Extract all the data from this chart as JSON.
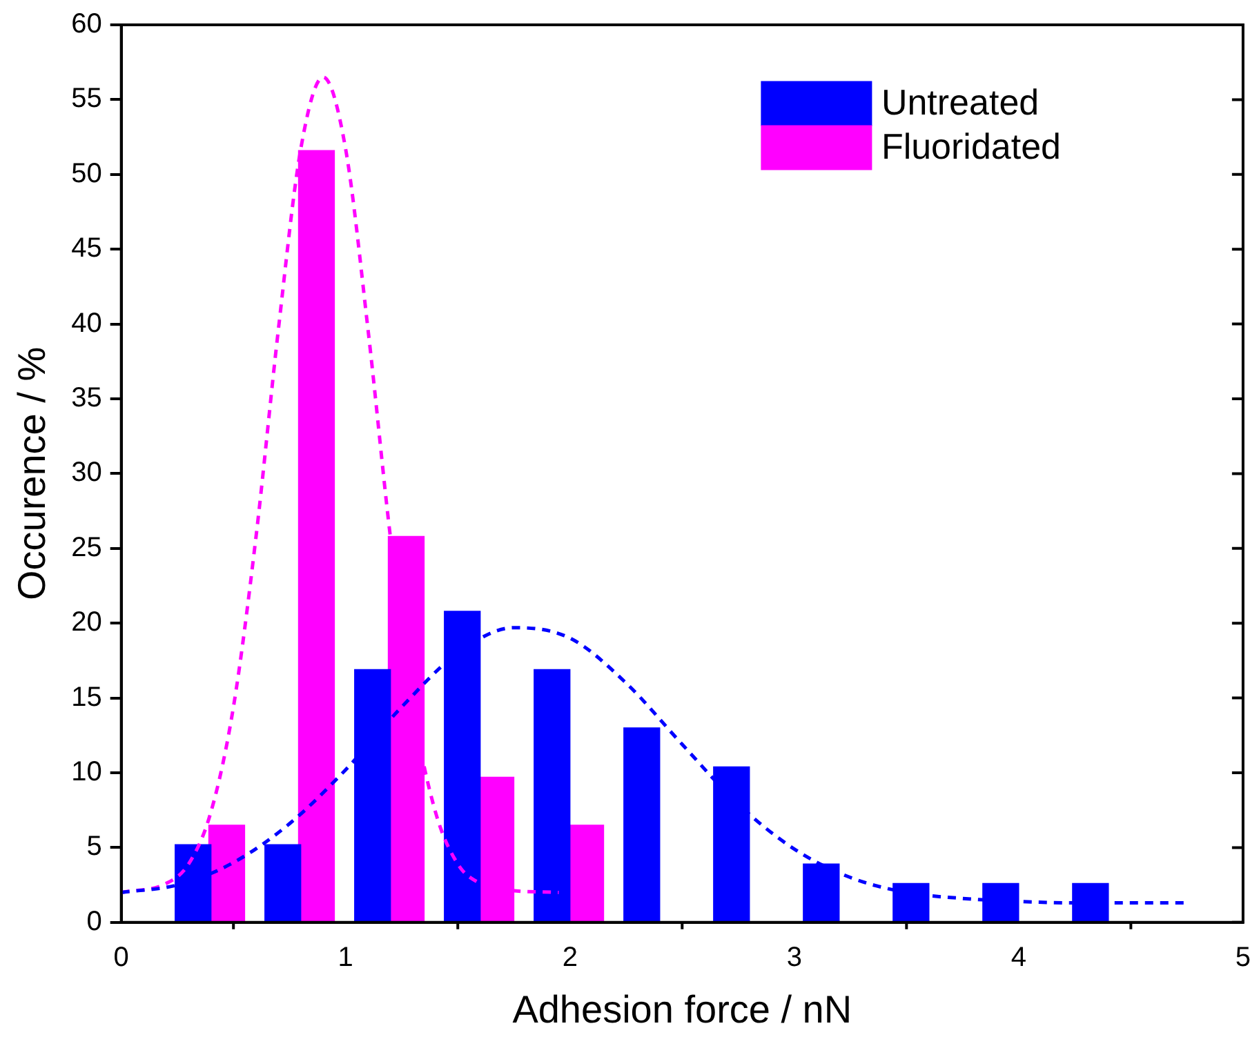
{
  "chart_data": {
    "type": "bar",
    "xlabel": "Adhesion force / nN",
    "ylabel": "Occurence / %",
    "xlim": [
      0,
      5
    ],
    "xticks": [
      0,
      1,
      2,
      3,
      4,
      5
    ],
    "ylim": [
      0,
      60
    ],
    "yticks": [
      0,
      5,
      10,
      15,
      20,
      25,
      30,
      35,
      40,
      45,
      50,
      55,
      60
    ],
    "grid": false,
    "legend": "top right",
    "series": [
      {
        "name": "Untreated",
        "color": "#0000ff",
        "x": [
          0.32,
          0.72,
          1.12,
          1.52,
          1.92,
          2.32,
          2.72,
          3.12,
          3.52,
          3.92,
          4.32
        ],
        "values": [
          5.2,
          5.2,
          16.9,
          20.8,
          16.9,
          13.0,
          10.4,
          3.9,
          2.6,
          2.6,
          2.6
        ]
      },
      {
        "name": "Fluoridated",
        "color": "#ff00ff",
        "x": [
          0.47,
          0.87,
          1.27,
          1.67,
          2.07
        ],
        "values": [
          6.5,
          51.6,
          25.8,
          9.7,
          6.5
        ]
      },
      {
        "type": "line",
        "color": "#0000ff",
        "line_style": "dashed",
        "marker": "none",
        "x": [
          0,
          0.25,
          0.5,
          0.75,
          1.0,
          1.25,
          1.5,
          1.75,
          2.0,
          2.25,
          2.5,
          2.75,
          3.0,
          3.25,
          3.5,
          3.75,
          4.0,
          4.25,
          4.5,
          4.75
        ],
        "values": [
          2.0,
          2.5,
          4.0,
          6.6,
          10.2,
          14.4,
          18.0,
          19.7,
          19.0,
          16.0,
          11.9,
          7.9,
          4.9,
          3.0,
          2.0,
          1.6,
          1.4,
          1.3,
          1.3,
          1.3
        ]
      },
      {
        "type": "line",
        "color": "#ff00ff",
        "line_style": "dashed",
        "marker": "none",
        "x": [
          0,
          0.2,
          0.3,
          0.4,
          0.5,
          0.6,
          0.7,
          0.8,
          0.9,
          1.0,
          1.1,
          1.2,
          1.3,
          1.4,
          1.5,
          1.6,
          1.7,
          1.95
        ],
        "values": [
          2.0,
          2.6,
          3.9,
          7.4,
          14.4,
          25.7,
          39.6,
          51.7,
          56.5,
          51.7,
          39.6,
          25.7,
          14.4,
          7.4,
          3.9,
          2.6,
          2.2,
          2.0
        ]
      }
    ]
  }
}
